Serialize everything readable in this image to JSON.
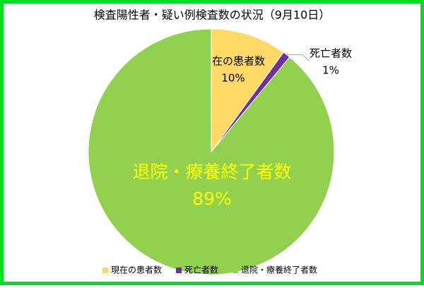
{
  "chart_data": {
    "type": "pie",
    "title": "検査陽性者・疑い例検査数の状況（9月10日）",
    "categories": [
      "現在の患者数",
      "死亡者数",
      "退院・療養終了者数"
    ],
    "values": [
      10,
      1,
      89
    ],
    "value_labels": [
      "10%",
      "1%",
      "89%"
    ],
    "colors": [
      "#ffd966",
      "#7030a0",
      "#92d050"
    ],
    "legend": "bottom"
  }
}
